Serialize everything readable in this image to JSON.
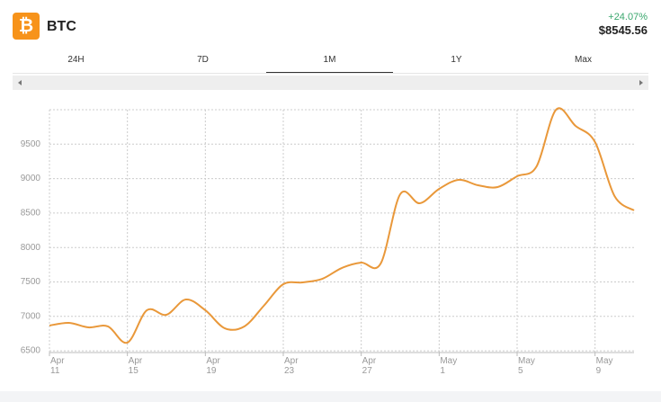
{
  "header": {
    "icon": "₿",
    "symbol": "BTC",
    "change": "+24.07%",
    "price": "$8545.56"
  },
  "tabs": [
    "24H",
    "7D",
    "1M",
    "1Y",
    "Max"
  ],
  "active_tab": 2,
  "chart_data": {
    "type": "line",
    "color": "#e9983a",
    "grid": true,
    "x": [
      0,
      1,
      2,
      3,
      4,
      5,
      6,
      7,
      8,
      9,
      10,
      11,
      12,
      13,
      14,
      15,
      16,
      17,
      18,
      19,
      20,
      21,
      22,
      23,
      24,
      25,
      26,
      27,
      28,
      29,
      30
    ],
    "values": [
      6867,
      6906,
      6840,
      6854,
      6619,
      7089,
      7023,
      7245,
      7089,
      6827,
      6854,
      7154,
      7467,
      7493,
      7545,
      7702,
      7780,
      7767,
      8773,
      8642,
      8851,
      8982,
      8903,
      8877,
      9034,
      9178,
      10000,
      9765,
      9530,
      8747,
      8538
    ],
    "xlim": [
      0,
      30
    ],
    "xticks": [
      {
        "value": 0,
        "label": "Apr 11"
      },
      {
        "value": 4,
        "label": "Apr 15"
      },
      {
        "value": 8,
        "label": "Apr 19"
      },
      {
        "value": 12,
        "label": "Apr 23"
      },
      {
        "value": 16,
        "label": "Apr 27"
      },
      {
        "value": 20,
        "label": "May 1"
      },
      {
        "value": 24,
        "label": "May 5"
      },
      {
        "value": 28,
        "label": "May 9"
      }
    ],
    "ylim": [
      6475,
      10000
    ],
    "yticks": [
      6500,
      7000,
      7500,
      8000,
      8500,
      9000,
      9500
    ]
  }
}
